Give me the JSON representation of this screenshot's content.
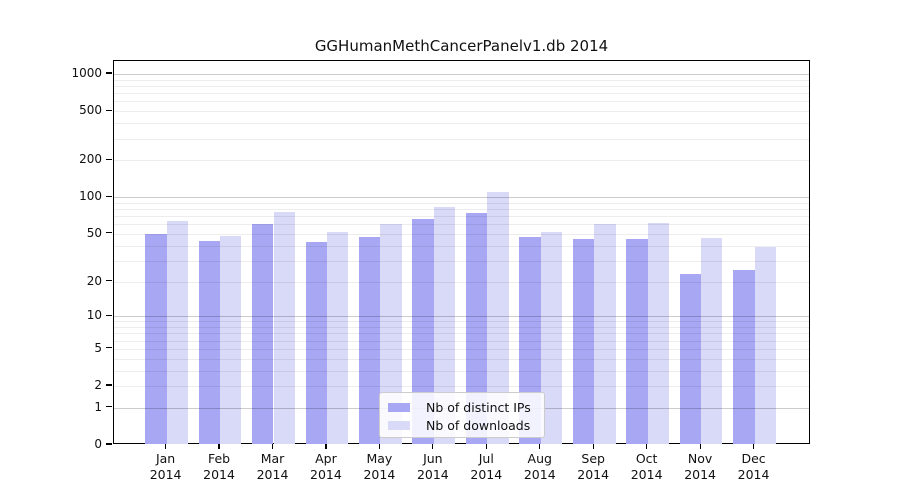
{
  "chart_data": {
    "type": "bar",
    "title": "GGHumanMethCancerPanelv1.db 2014",
    "categories": [
      "Jan",
      "Feb",
      "Mar",
      "Apr",
      "May",
      "Jun",
      "Jul",
      "Aug",
      "Sep",
      "Oct",
      "Nov",
      "Dec"
    ],
    "category_year": "2014",
    "series": [
      {
        "name": "Nb of distinct IPs",
        "color": "#a7a7f4",
        "values": [
          50,
          44,
          60,
          43,
          47,
          66,
          74,
          47,
          45,
          45,
          23,
          25
        ]
      },
      {
        "name": "Nb of downloads",
        "color": "#d9d9f8",
        "values": [
          64,
          48,
          76,
          52,
          60,
          83,
          110,
          52,
          60,
          61,
          46,
          39
        ]
      }
    ],
    "y_axis": {
      "scale": "log1p",
      "ticks": [
        0,
        1,
        2,
        5,
        10,
        20,
        50,
        100,
        200,
        500,
        1000
      ],
      "major_gridlines": [
        1,
        10,
        100,
        1000
      ],
      "range": [
        0,
        1000
      ]
    },
    "legend": {
      "position": "bottom-center"
    },
    "grid": true,
    "colors": {
      "background": "#ffffff",
      "spine": "#000000",
      "major_grid": "#cccccc",
      "minor_grid": "#ededed"
    }
  }
}
